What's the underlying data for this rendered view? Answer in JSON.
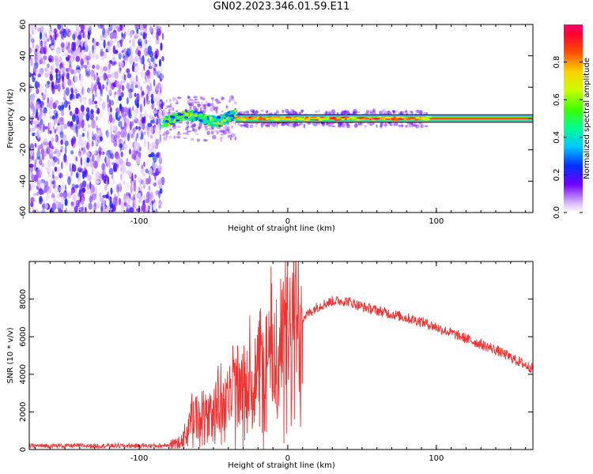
{
  "title": "GN02.2023.346.01.59.E11",
  "chart_data": [
    {
      "type": "heatmap",
      "xlabel": "Height of straight line (km)",
      "ylabel": "Frequency (Hz)",
      "xlim": [
        -174,
        165
      ],
      "ylim": [
        -60,
        60
      ],
      "x_ticks": [
        -100,
        0,
        100
      ],
      "y_ticks": [
        -60,
        -40,
        -20,
        0,
        20,
        40,
        60
      ],
      "colorbar": {
        "label": "Normalized spectral amplitude",
        "range": [
          0,
          1
        ],
        "ticks": [
          0.0,
          0.2,
          0.4,
          0.6,
          0.8
        ]
      },
      "regions": [
        {
          "x_range": [
            -174,
            -84
          ],
          "freq_range": [
            -60,
            60
          ],
          "amplitude_range": [
            0.02,
            0.25
          ]
        },
        {
          "x_range": [
            -84,
            -35
          ],
          "freq_center": 0,
          "freq_spread": 10,
          "amplitude_range": [
            0.2,
            0.7
          ]
        },
        {
          "x_range": [
            -35,
            95
          ],
          "freq_center": 0,
          "freq_spread": 2,
          "amplitude_range": [
            0.6,
            0.95
          ]
        },
        {
          "x_range": [
            95,
            165
          ],
          "freq_center": 0,
          "freq_spread": 1,
          "amplitude_range": [
            0.85,
            1.0
          ]
        }
      ]
    },
    {
      "type": "line",
      "xlabel": "Height of straight line (km)",
      "ylabel": "SNR (10 * v/v)",
      "xlim": [
        -174,
        165
      ],
      "ylim": [
        0,
        10000
      ],
      "x_ticks": [
        -100,
        0,
        100
      ],
      "y_ticks": [
        0,
        2000,
        4000,
        6000,
        8000
      ],
      "color": "#ee3333",
      "x": [
        -174,
        -120,
        -85,
        -75,
        -70,
        -65,
        -60,
        -55,
        -50,
        -45,
        -40,
        -35,
        -30,
        -25,
        -20,
        -15,
        -10,
        -5,
        0,
        5,
        10,
        20,
        30,
        40,
        50,
        60,
        70,
        80,
        90,
        100,
        110,
        120,
        130,
        140,
        150,
        160,
        165
      ],
      "y": [
        200,
        200,
        200,
        350,
        600,
        1500,
        1800,
        1600,
        2100,
        2500,
        2800,
        3000,
        2700,
        3300,
        3900,
        4500,
        4900,
        5200,
        5500,
        6200,
        7000,
        7600,
        7900,
        7900,
        7600,
        7400,
        7200,
        7000,
        6800,
        6500,
        6200,
        5900,
        5600,
        5300,
        4900,
        4500,
        4300
      ]
    }
  ]
}
